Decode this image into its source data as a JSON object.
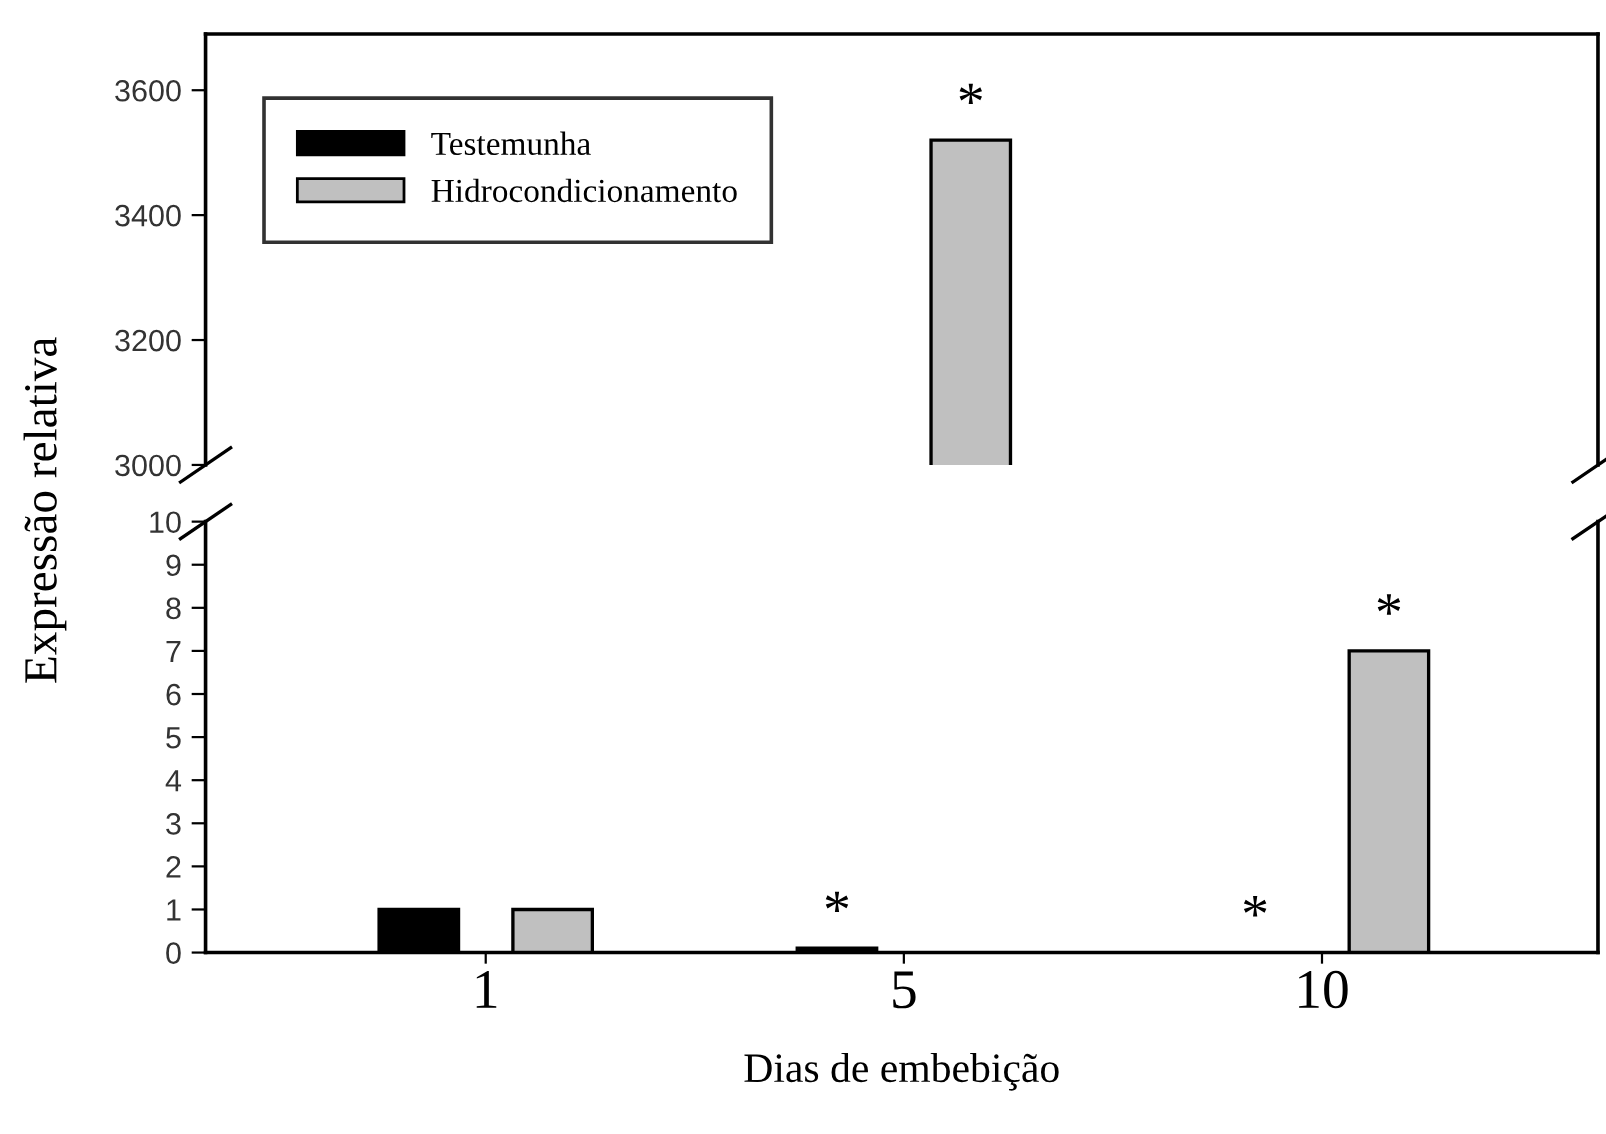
{
  "chart_data": [
    {
      "type": "bar",
      "ylabel": "Expressão relativa",
      "categories": [
        "1",
        "5",
        "10"
      ],
      "series": [
        {
          "name": "Testemunha",
          "color": "#000000",
          "values": [
            null,
            null,
            null
          ]
        },
        {
          "name": "Hidrocondicionamento",
          "color": "#c0c0c0",
          "values": [
            null,
            3520,
            null
          ],
          "value_labels": [
            null,
            "*",
            null
          ]
        }
      ],
      "ylim": [
        3000,
        3690
      ],
      "yticks": [
        3000,
        3200,
        3400,
        3600
      ],
      "tick_labels": "y",
      "legend": "top left",
      "grid": false
    },
    {
      "type": "bar",
      "xlabel": "Dias de embebição",
      "categories": [
        "1",
        "5",
        "10"
      ],
      "series": [
        {
          "color": "#000000",
          "values": [
            1,
            0.1,
            0
          ],
          "value_labels": [
            null,
            "*",
            "*"
          ]
        },
        {
          "color": "#c0c0c0",
          "values": [
            1,
            null,
            7
          ],
          "value_labels": [
            null,
            null,
            "*"
          ]
        }
      ],
      "ylim": [
        0,
        10
      ],
      "yticks": [
        0,
        1,
        2,
        3,
        4,
        5,
        6,
        7,
        8,
        9,
        10
      ],
      "grid": false
    }
  ]
}
